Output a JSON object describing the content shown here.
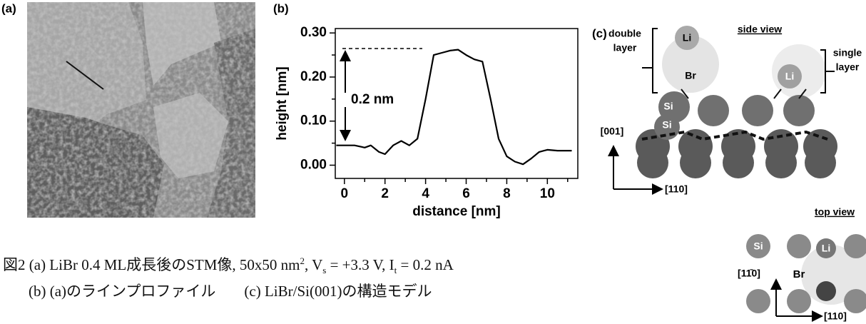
{
  "panel_a": {
    "label": "(a)"
  },
  "chart_data": {
    "type": "line",
    "panel_label": "(b)",
    "xlabel": "distance [nm]",
    "ylabel": "height [nm]",
    "annotation": "0.2 nm",
    "x": [
      -0.4,
      0,
      0.5,
      1,
      1.3,
      1.7,
      2,
      2.4,
      2.8,
      3.2,
      3.6,
      4,
      4.4,
      4.8,
      5.2,
      5.6,
      6,
      6.4,
      6.8,
      7.2,
      7.6,
      8,
      8.4,
      8.8,
      9.2,
      9.6,
      10,
      10.5,
      11.2
    ],
    "values": [
      0.045,
      0.045,
      0.045,
      0.04,
      0.045,
      0.03,
      0.025,
      0.045,
      0.055,
      0.045,
      0.06,
      0.15,
      0.25,
      0.255,
      0.26,
      0.262,
      0.25,
      0.24,
      0.235,
      0.15,
      0.06,
      0.02,
      0.008,
      0.002,
      0.015,
      0.03,
      0.035,
      0.033,
      0.033
    ],
    "color": "#000000",
    "xlim": [
      -0.45,
      11.5
    ],
    "ylim": [
      -0.03,
      0.31
    ],
    "xticks": [
      0,
      2,
      4,
      6,
      8,
      10
    ],
    "xminor_ticks": [
      1,
      3,
      5,
      7,
      9,
      11
    ],
    "yticks": [
      {
        "value": 0,
        "label": "0.00"
      },
      {
        "value": 0.1,
        "label": "0.10"
      },
      {
        "value": 0.2,
        "label": "0.20"
      },
      {
        "value": 0.3,
        "label": "0.30"
      }
    ],
    "yminor_ticks": [
      0.05,
      0.15,
      0.25
    ]
  },
  "panel_c": {
    "label": "(c)",
    "double_layer": [
      "double",
      "layer"
    ],
    "single_layer": [
      "single",
      "layer"
    ],
    "side_view": "side view",
    "top_view": "top view",
    "side_atoms": {
      "li_1": "Li",
      "br": "Br",
      "li_2": "Li",
      "si_1": "Si",
      "si_2": "Si"
    },
    "top_atoms": {
      "si": "Si",
      "li": "Li",
      "br": "Br"
    },
    "axes_side": {
      "vertical": "[001]",
      "horizontal": "[110]"
    },
    "axes_top": {
      "vertical": "[11̄0]",
      "horizontal": "[110]"
    }
  },
  "caption": {
    "line1": [
      "図2 (a) LiBr 0.4 ML成長後のSTM像, 50x50 nm",
      "2",
      ", V",
      "s",
      " = +3.3 V, I",
      "t",
      " = 0.2 nA"
    ],
    "line2": [
      "(b) (a)のラインプロファイル",
      "(c) LiBr/Si(001)の構造モデル"
    ]
  }
}
